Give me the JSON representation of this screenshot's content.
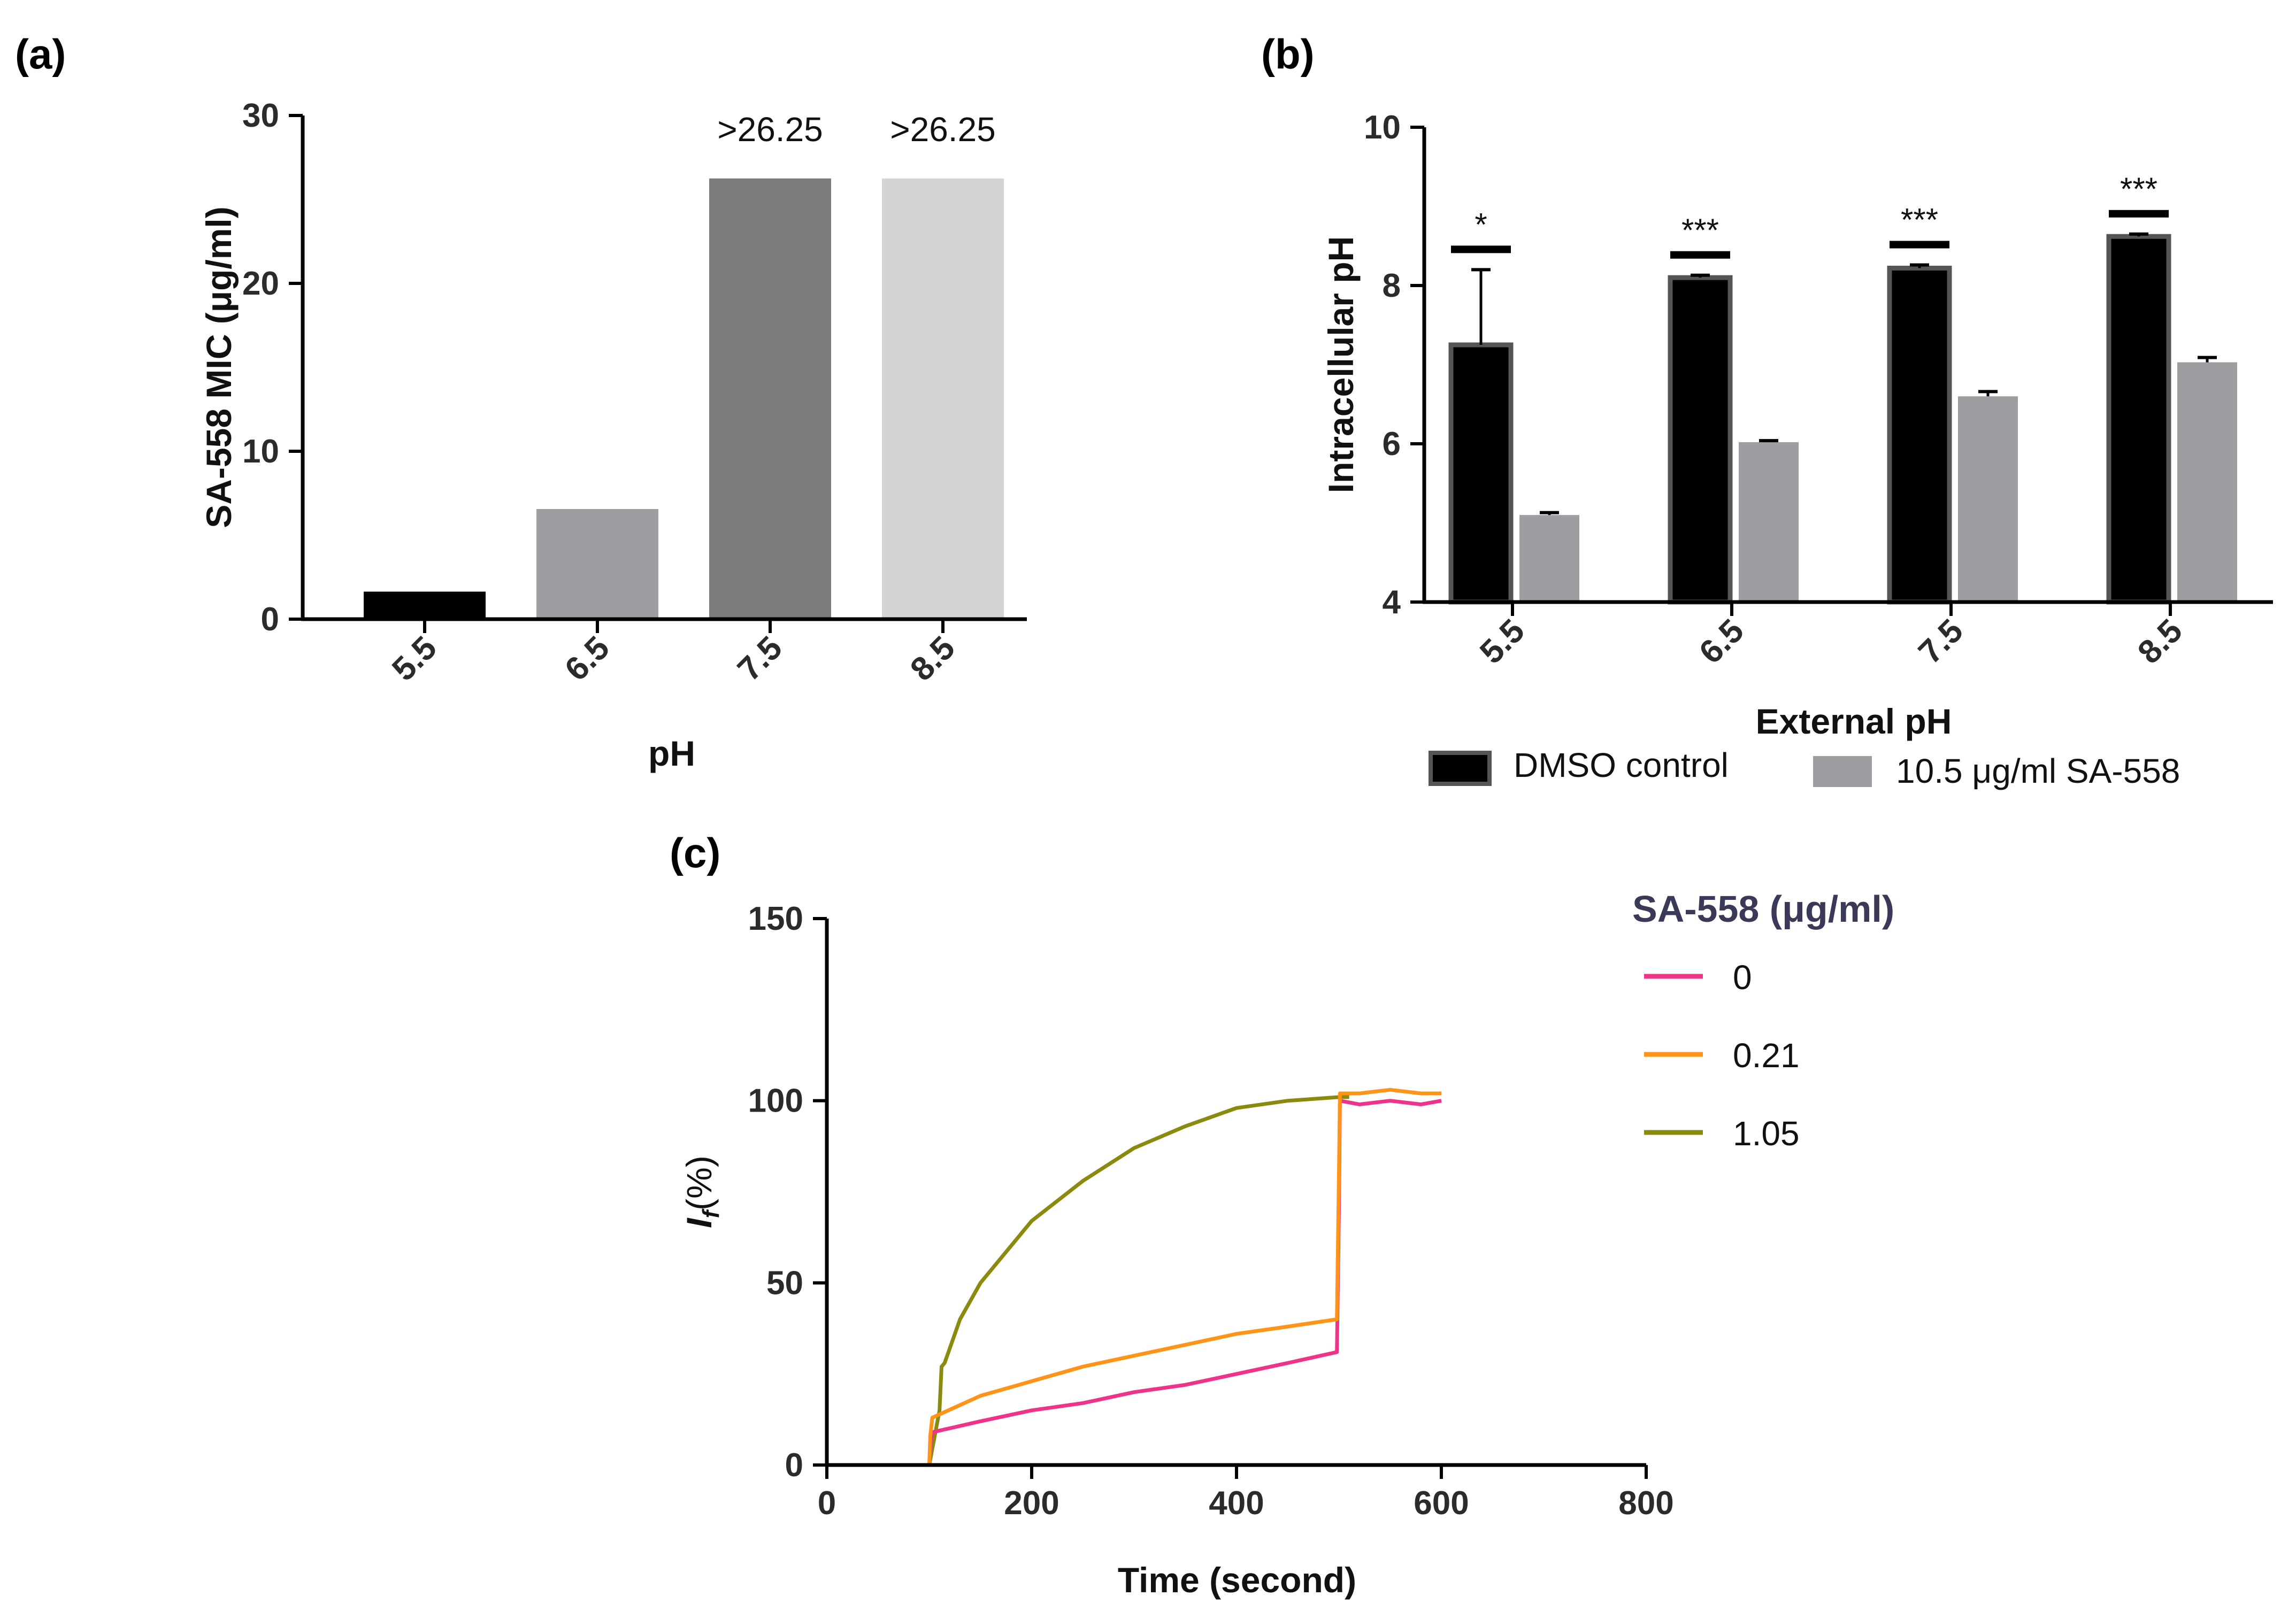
{
  "panels": [
    {
      "label": "(a)",
      "chart_data": {
        "type": "bar",
        "categories": [
          "5.5",
          "6.5",
          "7.5",
          "8.5"
        ],
        "values": [
          1.64,
          6.56,
          26.25,
          26.25
        ],
        "colors": [
          "#000000",
          "#9e9ea2",
          "#7b7b7b",
          "#d4d4d4"
        ],
        "annotations": [
          "",
          "",
          ">26.25",
          ">26.25"
        ],
        "xlabel": "pH",
        "ylabel": "SA-558 MIC (μg/ml)",
        "ylim": [
          0,
          30
        ],
        "yticks": [
          "0",
          "10",
          "20",
          "30"
        ]
      }
    },
    {
      "label": "(b)",
      "chart_data": {
        "type": "bar",
        "categories": [
          "5.5",
          "6.5",
          "7.5",
          "8.5"
        ],
        "series": [
          {
            "name": "DMSO control",
            "values": [
              7.25,
              8.1,
              8.22,
              8.62
            ],
            "errors": [
              0.95,
              0.03,
              0.04,
              0.03
            ],
            "color": "#000000",
            "edge": "#555555"
          },
          {
            "name": "10.5 μg/ml SA-558",
            "values": [
              5.1,
              6.02,
              6.6,
              7.03
            ],
            "errors": [
              0.03,
              0.02,
              0.06,
              0.06
            ],
            "color": "#9e9ea2"
          }
        ],
        "significance": [
          "*",
          "***",
          "***",
          "***"
        ],
        "xlabel": "External pH",
        "ylabel": "Intracellular pH",
        "ylim": [
          4,
          10
        ],
        "yticks": [
          "4",
          "6",
          "8",
          "10"
        ]
      }
    },
    {
      "label": "(c)",
      "chart_data": {
        "type": "line",
        "title": "SA-558 (μg/ml)",
        "xlabel": "Time (second)",
        "ylabel_main": "I",
        "ylabel_sub": "f",
        "ylabel_rest": "(%)",
        "xlim": [
          0,
          800
        ],
        "ylim": [
          0,
          150
        ],
        "xticks": [
          "0",
          "200",
          "400",
          "600",
          "800"
        ],
        "yticks": [
          "0",
          "50",
          "100",
          "150"
        ],
        "series": [
          {
            "name": "0",
            "color": "#f0338a",
            "x": [
              0,
              100,
              101,
              103,
              150,
              200,
              250,
              300,
              350,
              400,
              450,
              498,
              500,
              501,
              520,
              550,
              580,
              600
            ],
            "y": [
              0,
              0,
              5,
              9,
              12,
              15,
              17,
              20,
              22,
              25,
              28,
              31,
              70,
              100,
              99,
              100,
              99,
              100
            ]
          },
          {
            "name": "0.21",
            "color": "#ff9419",
            "x": [
              0,
              100,
              101,
              103,
              150,
              200,
              250,
              300,
              350,
              400,
              450,
              498,
              500,
              501,
              520,
              550,
              580,
              600
            ],
            "y": [
              0,
              0,
              8,
              13,
              19,
              23,
              27,
              30,
              33,
              36,
              38,
              40,
              80,
              102,
              102,
              103,
              102,
              102
            ]
          },
          {
            "name": "1.05",
            "color": "#898a0e",
            "x": [
              0,
              100,
              110,
              112,
              115,
              130,
              150,
              200,
              250,
              300,
              350,
              400,
              450,
              500,
              510
            ],
            "y": [
              0,
              0,
              15,
              27,
              28,
              40,
              50,
              67,
              78,
              87,
              93,
              98,
              100,
              101,
              101
            ]
          }
        ]
      }
    }
  ]
}
